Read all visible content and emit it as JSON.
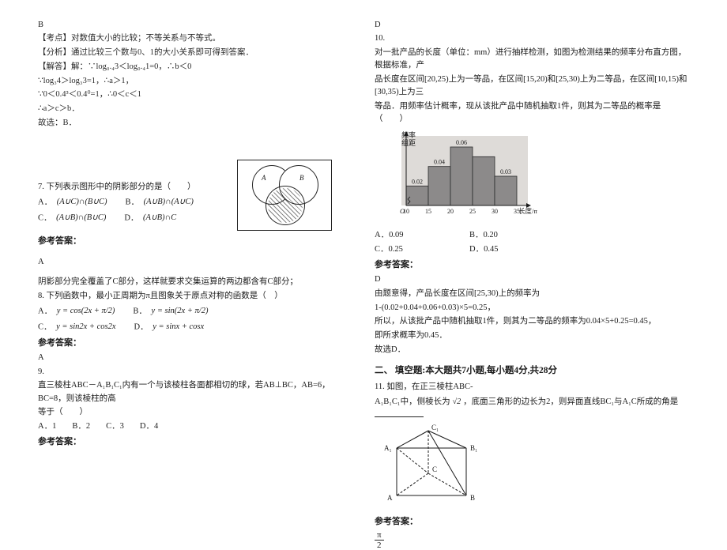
{
  "left": {
    "ansB": "B",
    "kaodian_label": "【考点】",
    "kaodian": "对数值大小的比较；不等关系与不等式。",
    "fenxi_label": "【分析】",
    "fenxi": "通过比较三个数与0、1的大小关系即可得到答案．",
    "jieda_label": "【解答】",
    "jieda_prefix": "解：∵log",
    "jieda_line1": "∵log₀.₄3＜log₀.₄1=0，∴b＜0",
    "jieda_line2": "∵log₃4＞log₃3=1，∴a＞1，",
    "jieda_line3": "∵0＜0.4³＜0.4⁰=1，∴0＜c＜1",
    "jieda_line4": "∴a＞c＞b．",
    "jieda_line5": "故选：B．",
    "q7_stem": "7. 下列表示图形中的阴影部分的是（　　）",
    "q7_A": "A．",
    "q7_A_f": "(A∪C)∩(B∪C)",
    "q7_B": "B．",
    "q7_B_f": "(A∪B)∩(A∪C)",
    "q7_C": "C．",
    "q7_C_f": "(A∪B)∩(B∪C)",
    "q7_D": "D．",
    "q7_D_f": "(A∪B)∩C",
    "ref_label": "参考答案：",
    "q7_ans": "A",
    "q7_explain": "阴影部分完全覆盖了C部分，这样就要求交集运算的两边都含有C部分；",
    "q8_stem": "8. 下列函数中，最小正周期为π且图象关于原点对称的函数是（　）",
    "q8_A": "A．",
    "q8_A_f": "y = cos(2x + π/2)",
    "q8_B": "B．",
    "q8_B_f": "y = sin(2x + π/2)",
    "q8_C": "C．",
    "q8_C_f": "y = sin2x + cos2x",
    "q8_D": "D．",
    "q8_D_f": "y = sinx + cosx",
    "q8_ans": "A",
    "q9_stem_a": "直三棱柱ABC－A₁B₁C₁内有一个与该棱柱各面都相切的球，若AB⊥BC，AB=6，BC=8，则该棱柱的高",
    "q9_stem_b": "等于（　　）",
    "q9_num": "9.",
    "q9_A": "A．1",
    "q9_B": "B．2",
    "q9_C": "C．3",
    "q9_D": "D．4",
    "venn_A": "A",
    "venn_B": "B"
  },
  "right": {
    "ansD": "D",
    "q10_num": "10.",
    "q10_stem_a": "对一批产品的长度（单位：mm）进行抽样检测，如图为检测结果的频率分布直方图，根据标准，产",
    "q10_stem_b": "品长度在区间[20,25)上为一等品，在区间[15,20)和[25,30)上为二等品，在区间[10,15)和[30,35)上为三",
    "q10_stem_c": "等品．用频率估计概率，现从该批产品中随机抽取1件，则其为二等品的概率是（　　）",
    "hist": {
      "ylabel1": "频率",
      "ylabel2": "组距",
      "xlabel": "长度/mm",
      "bars": [
        {
          "x": 10,
          "h": 0.02,
          "label": "0.02"
        },
        {
          "x": 15,
          "h": 0.04,
          "label": "0.04"
        },
        {
          "x": 20,
          "h": 0.06,
          "label": "0.06"
        },
        {
          "x": 25,
          "h": 0.05,
          "label": ""
        },
        {
          "x": 30,
          "h": 0.03,
          "label": "0.03"
        }
      ],
      "xticks": [
        "10",
        "15",
        "20",
        "25",
        "30",
        "35"
      ],
      "bar_fill": "#8c8a8a",
      "bar_stroke": "#2a2a2a",
      "axis_color": "#1a1a1a",
      "bg": "#dedbd8"
    },
    "q10_A": "A．0.09",
    "q10_B": "B．0.20",
    "q10_C": "C．0.25",
    "q10_D": "D．0.45",
    "ref_label": "参考答案：",
    "q10_ans": "D",
    "q10_sol1": "由题意得，产品长度在区间[25,30)上的频率为",
    "q10_sol2": "1-(0.02+0.04+0.06+0.03)×5=0.25，",
    "q10_sol3": "所以，从该批产品中随机抽取1件，则其为二等品的频率为0.04×5+0.25=0.45，",
    "q10_sol4": "即所求概率为0.45．",
    "q10_sol5": "故选D．",
    "sec2_title": "二、 填空题:本大题共7小题,每小题4分,共28分",
    "q11_stem_a": "11. 如图，在正三棱柱ABC-",
    "q11_stem_b_1": "A₁B₁C₁中，侧棱长为",
    "q11_sqrt2": "√2",
    "q11_stem_b_2": "，底面三角形的边长为2，则异面直线BC₁与A₁C所成的角是",
    "prism": {
      "labels": {
        "A1": "A₁",
        "B1": "B₁",
        "C1": "C₁",
        "A": "A",
        "B": "B",
        "C": "C"
      },
      "edge_color": "#1a1a1a"
    },
    "q11_ans_num": "π",
    "q11_ans_den": "2"
  }
}
